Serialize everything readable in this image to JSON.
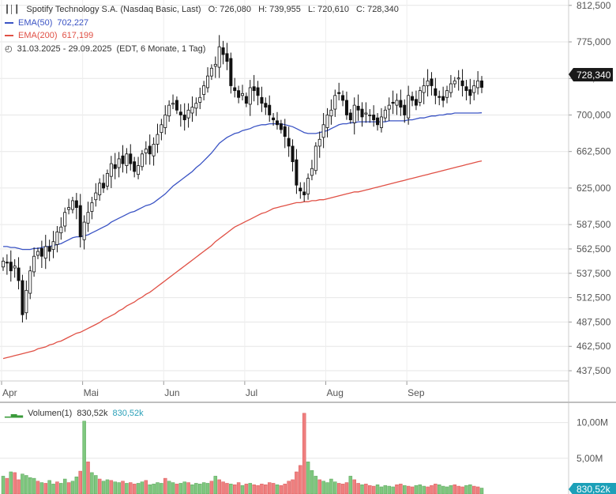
{
  "header": {
    "instrument": "Spotify Technology S.A. (Nasdaq Basic, Last)",
    "o": "O: 726,080",
    "h": "H: 739,955",
    "l": "L: 720,610",
    "c": "C: 728,340",
    "ema50_label": "EMA(50)",
    "ema50_value": "702,227",
    "ema200_label": "EMA(200)",
    "ema200_value": "617,199",
    "range": "31.03.2025 - 29.09.2025",
    "range_info": "(EDT, 6 Monate, 1 Tag)",
    "volume_label": "Volumen(1)",
    "volume_value": "830,52k",
    "volume_value2": "830,52k"
  },
  "price_badge": "728,340",
  "volume_badge": "830,52k",
  "colors": {
    "ema50": "#3a53c4",
    "ema200": "#e05045",
    "candle": "#111111",
    "vol_up": "#7fc77f",
    "vol_down": "#ef7f7f",
    "badge": "#1a1a1a",
    "vol_badge": "#1ca0b8"
  },
  "chart_data": {
    "type": "candlestick",
    "y_ticks": [
      "812,500",
      "775,000",
      "737,500",
      "700,000",
      "662,500",
      "625,000",
      "587,500",
      "562,500",
      "537,500",
      "512,500",
      "487,500",
      "462,500",
      "437,500"
    ],
    "y_tick_values": [
      812.5,
      775,
      737.5,
      700,
      662.5,
      625,
      587.5,
      562.5,
      537.5,
      512.5,
      487.5,
      462.5,
      437.5
    ],
    "ylim": [
      427,
      818
    ],
    "x_labels": [
      {
        "label": "Apr",
        "day": 0
      },
      {
        "label": "Mai",
        "day": 21
      },
      {
        "label": "Jun",
        "day": 42
      },
      {
        "label": "Jul",
        "day": 63
      },
      {
        "label": "Aug",
        "day": 84
      },
      {
        "label": "Sep",
        "day": 105
      }
    ],
    "total_days": 125,
    "closes": [
      550,
      548,
      540,
      545,
      530,
      495,
      520,
      540,
      555,
      560,
      555,
      565,
      560,
      570,
      580,
      585,
      600,
      605,
      612,
      605,
      575,
      590,
      600,
      610,
      620,
      630,
      625,
      640,
      650,
      645,
      655,
      650,
      660,
      650,
      642,
      648,
      660,
      665,
      660,
      670,
      680,
      690,
      700,
      710,
      712,
      705,
      700,
      695,
      705,
      708,
      712,
      718,
      730,
      740,
      748,
      752,
      770,
      762,
      755,
      730,
      725,
      718,
      722,
      712,
      728,
      725,
      720,
      712,
      708,
      700,
      695,
      690,
      685,
      678,
      668,
      652,
      628,
      622,
      618,
      635,
      645,
      668,
      675,
      690,
      700,
      705,
      720,
      722,
      715,
      700,
      695,
      710,
      705,
      698,
      702,
      700,
      695,
      690,
      698,
      705,
      710,
      712,
      715,
      708,
      700,
      720,
      715,
      710,
      725,
      730,
      735,
      730,
      720,
      718,
      715,
      725,
      732,
      735,
      738,
      730,
      725,
      720,
      730,
      735,
      728.34
    ],
    "ema50": [
      565,
      565,
      564,
      564,
      563,
      562,
      562,
      562,
      563,
      563,
      564,
      565,
      565,
      566,
      567,
      568,
      570,
      572,
      574,
      575,
      575,
      576,
      577,
      579,
      581,
      583,
      585,
      587,
      590,
      592,
      594,
      596,
      598,
      600,
      601,
      603,
      605,
      607,
      608,
      610,
      613,
      616,
      619,
      623,
      627,
      630,
      633,
      636,
      639,
      642,
      646,
      649,
      653,
      657,
      661,
      666,
      671,
      674,
      677,
      679,
      681,
      682,
      684,
      685,
      686,
      688,
      689,
      690,
      690,
      691,
      691,
      691,
      691,
      690,
      689,
      688,
      686,
      684,
      682,
      681,
      681,
      681,
      682,
      683,
      684,
      686,
      688,
      690,
      691,
      691,
      692,
      692,
      693,
      693,
      693,
      693,
      693,
      693,
      693,
      693,
      694,
      694,
      694,
      694,
      694,
      695,
      695,
      696,
      697,
      697,
      698,
      699,
      699,
      700,
      700,
      701,
      701,
      702,
      702,
      702,
      702,
      702,
      702,
      702,
      702.227
    ],
    "ema200": [
      450,
      451,
      452,
      453,
      454,
      455,
      456,
      457,
      458,
      460,
      461,
      462,
      464,
      465,
      467,
      468,
      470,
      472,
      474,
      476,
      477,
      479,
      481,
      483,
      485,
      487,
      490,
      492,
      494,
      496,
      499,
      501,
      504,
      506,
      508,
      511,
      513,
      516,
      518,
      521,
      524,
      527,
      530,
      533,
      536,
      539,
      542,
      545,
      548,
      551,
      554,
      557,
      560,
      563,
      566,
      570,
      573,
      576,
      579,
      582,
      585,
      587,
      589,
      591,
      593,
      595,
      597,
      599,
      600,
      602,
      604,
      605,
      606,
      607,
      608,
      609,
      610,
      610,
      611,
      611,
      612,
      612,
      613,
      613,
      614,
      615,
      616,
      617,
      618,
      619,
      620,
      621,
      621,
      622,
      623,
      624,
      625,
      626,
      627,
      628,
      629,
      630,
      631,
      632,
      633,
      634,
      635,
      636,
      637,
      638,
      639,
      640,
      641,
      642,
      643,
      644,
      645,
      646,
      647,
      648,
      649,
      650,
      651,
      652,
      617.199
    ],
    "volume": {
      "y_ticks": [
        "10,00M",
        "5,00M"
      ],
      "y_tick_values": [
        10,
        5
      ],
      "ylim": [
        0,
        12.5
      ],
      "values": [
        2.5,
        2.2,
        3.1,
        3.0,
        2.0,
        2.8,
        2.6,
        2.3,
        2.2,
        1.8,
        1.6,
        1.5,
        1.9,
        1.4,
        1.7,
        1.5,
        2.1,
        1.6,
        1.8,
        2.4,
        3.2,
        10.2,
        4.5,
        3.0,
        2.6,
        2.1,
        1.8,
        2.0,
        1.9,
        1.7,
        1.6,
        1.8,
        1.5,
        1.6,
        1.4,
        1.5,
        1.7,
        1.9,
        1.3,
        1.4,
        1.6,
        1.5,
        2.2,
        1.8,
        1.6,
        1.4,
        1.5,
        1.7,
        1.6,
        1.3,
        1.5,
        1.4,
        1.6,
        1.5,
        1.8,
        2.5,
        2.0,
        1.7,
        1.5,
        1.4,
        1.3,
        1.6,
        1.2,
        1.4,
        1.5,
        1.3,
        1.2,
        1.4,
        1.3,
        1.6,
        1.5,
        1.3,
        1.2,
        1.4,
        1.8,
        2.0,
        3.1,
        4.0,
        11.3,
        4.5,
        3.3,
        2.5,
        2.0,
        1.8,
        1.6,
        2.1,
        1.7,
        1.5,
        1.4,
        1.6,
        2.5,
        2.0,
        1.5,
        1.3,
        1.4,
        1.2,
        1.1,
        1.3,
        1.0,
        1.2,
        1.1,
        1.0,
        1.3,
        1.4,
        1.2,
        1.1,
        1.0,
        1.2,
        1.3,
        1.1,
        1.0,
        1.2,
        1.4,
        1.3,
        1.1,
        1.0,
        1.2,
        1.3,
        1.1,
        1.0,
        1.2,
        1.3,
        1.1,
        1.0,
        0.83
      ],
      "up": [
        1,
        0,
        1,
        0,
        0,
        1,
        1,
        1,
        1,
        0,
        1,
        0,
        1,
        1,
        0,
        1,
        1,
        0,
        1,
        1,
        0,
        1,
        0,
        1,
        1,
        0,
        1,
        1,
        0,
        1,
        1,
        0,
        1,
        0,
        0,
        1,
        1,
        0,
        1,
        1,
        1,
        1,
        0,
        1,
        1,
        0,
        1,
        1,
        0,
        1,
        1,
        1,
        1,
        1,
        0,
        1,
        0,
        0,
        0,
        1,
        0,
        0,
        1,
        0,
        1,
        0,
        0,
        0,
        0,
        0,
        0,
        1,
        0,
        0,
        0,
        0,
        0,
        0,
        0,
        1,
        1,
        1,
        0,
        1,
        1,
        1,
        1,
        0,
        0,
        0,
        1,
        0,
        0,
        1,
        0,
        0,
        0,
        1,
        1,
        1,
        1,
        1,
        0,
        0,
        1,
        0,
        0,
        1,
        1,
        1,
        0,
        0,
        0,
        1,
        1,
        1,
        1,
        0,
        0,
        0,
        1,
        1,
        0,
        0,
        1
      ]
    }
  }
}
